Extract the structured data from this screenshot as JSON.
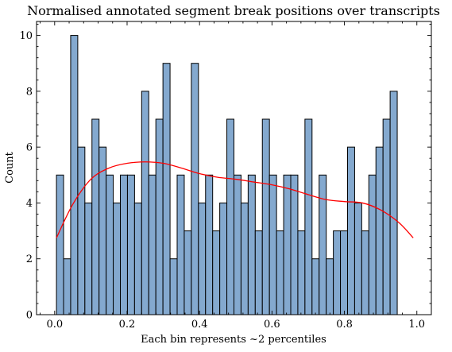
{
  "chart_data": {
    "type": "bar",
    "title": "Normalised annotated segment break positions over transcripts",
    "xlabel": "Each bin represents ~2 percentiles",
    "ylabel": "Count",
    "xlim": [
      -0.05,
      1.04
    ],
    "ylim": [
      0,
      10.5
    ],
    "xticks": [
      0.0,
      0.2,
      0.4,
      0.6,
      0.8,
      1.0
    ],
    "xtick_labels": [
      "0.0",
      "0.2",
      "0.4",
      "0.6",
      "0.8",
      "1.0"
    ],
    "yticks": [
      0,
      2,
      4,
      6,
      8,
      10
    ],
    "ytick_labels": [
      "0",
      "2",
      "4",
      "6",
      "8",
      "10"
    ],
    "bin_start": 0.005,
    "bin_width": 0.0196,
    "values": [
      5,
      2,
      10,
      6,
      4,
      7,
      6,
      5,
      4,
      5,
      5,
      4,
      8,
      5,
      7,
      9,
      2,
      5,
      3,
      9,
      4,
      5,
      3,
      4,
      7,
      5,
      4,
      5,
      3,
      7,
      5,
      3,
      5,
      5,
      3,
      7,
      2,
      5,
      2,
      3,
      3,
      6,
      4,
      3,
      5,
      6,
      7,
      8
    ],
    "bar_color": "#84a9cf",
    "bar_edge_color": "#000000",
    "kde": {
      "color": "#ff0000",
      "x": [
        0.005,
        0.05,
        0.1,
        0.15,
        0.2,
        0.25,
        0.3,
        0.35,
        0.4,
        0.45,
        0.5,
        0.55,
        0.6,
        0.65,
        0.7,
        0.75,
        0.8,
        0.85,
        0.9,
        0.95,
        0.99
      ],
      "y": [
        2.75,
        3.95,
        4.85,
        5.25,
        5.42,
        5.47,
        5.42,
        5.25,
        5.05,
        4.92,
        4.85,
        4.75,
        4.65,
        4.5,
        4.3,
        4.12,
        4.05,
        4.0,
        3.75,
        3.3,
        2.75
      ]
    },
    "grid": false
  }
}
